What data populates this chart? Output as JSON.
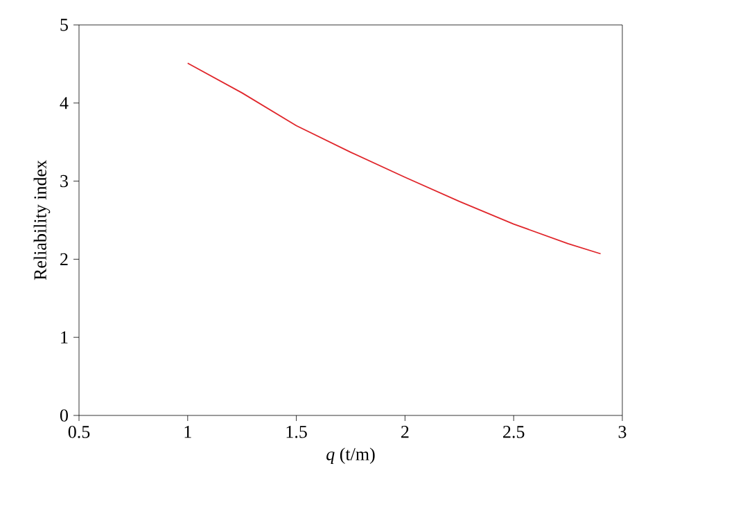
{
  "chart_data": {
    "type": "line",
    "xlabel": "*q* (t/m)",
    "ylabel": "Reliability index",
    "x": [
      1,
      1.25,
      1.5,
      1.75,
      2,
      2.25,
      2.5,
      2.75,
      2.9
    ],
    "series": [
      {
        "color": "#e0262b",
        "values": [
          4.51,
          4.13,
          3.71,
          3.37,
          3.05,
          2.74,
          2.45,
          2.2,
          2.07
        ]
      }
    ],
    "xlim": [
      0.5,
      3
    ],
    "ylim": [
      0,
      5
    ],
    "xticks": [
      0.5,
      1,
      1.5,
      2,
      2.5,
      3
    ],
    "yticks": [
      0,
      1,
      2,
      3,
      4,
      5
    ],
    "grid": false,
    "marker": "none",
    "line_style": "solid"
  }
}
